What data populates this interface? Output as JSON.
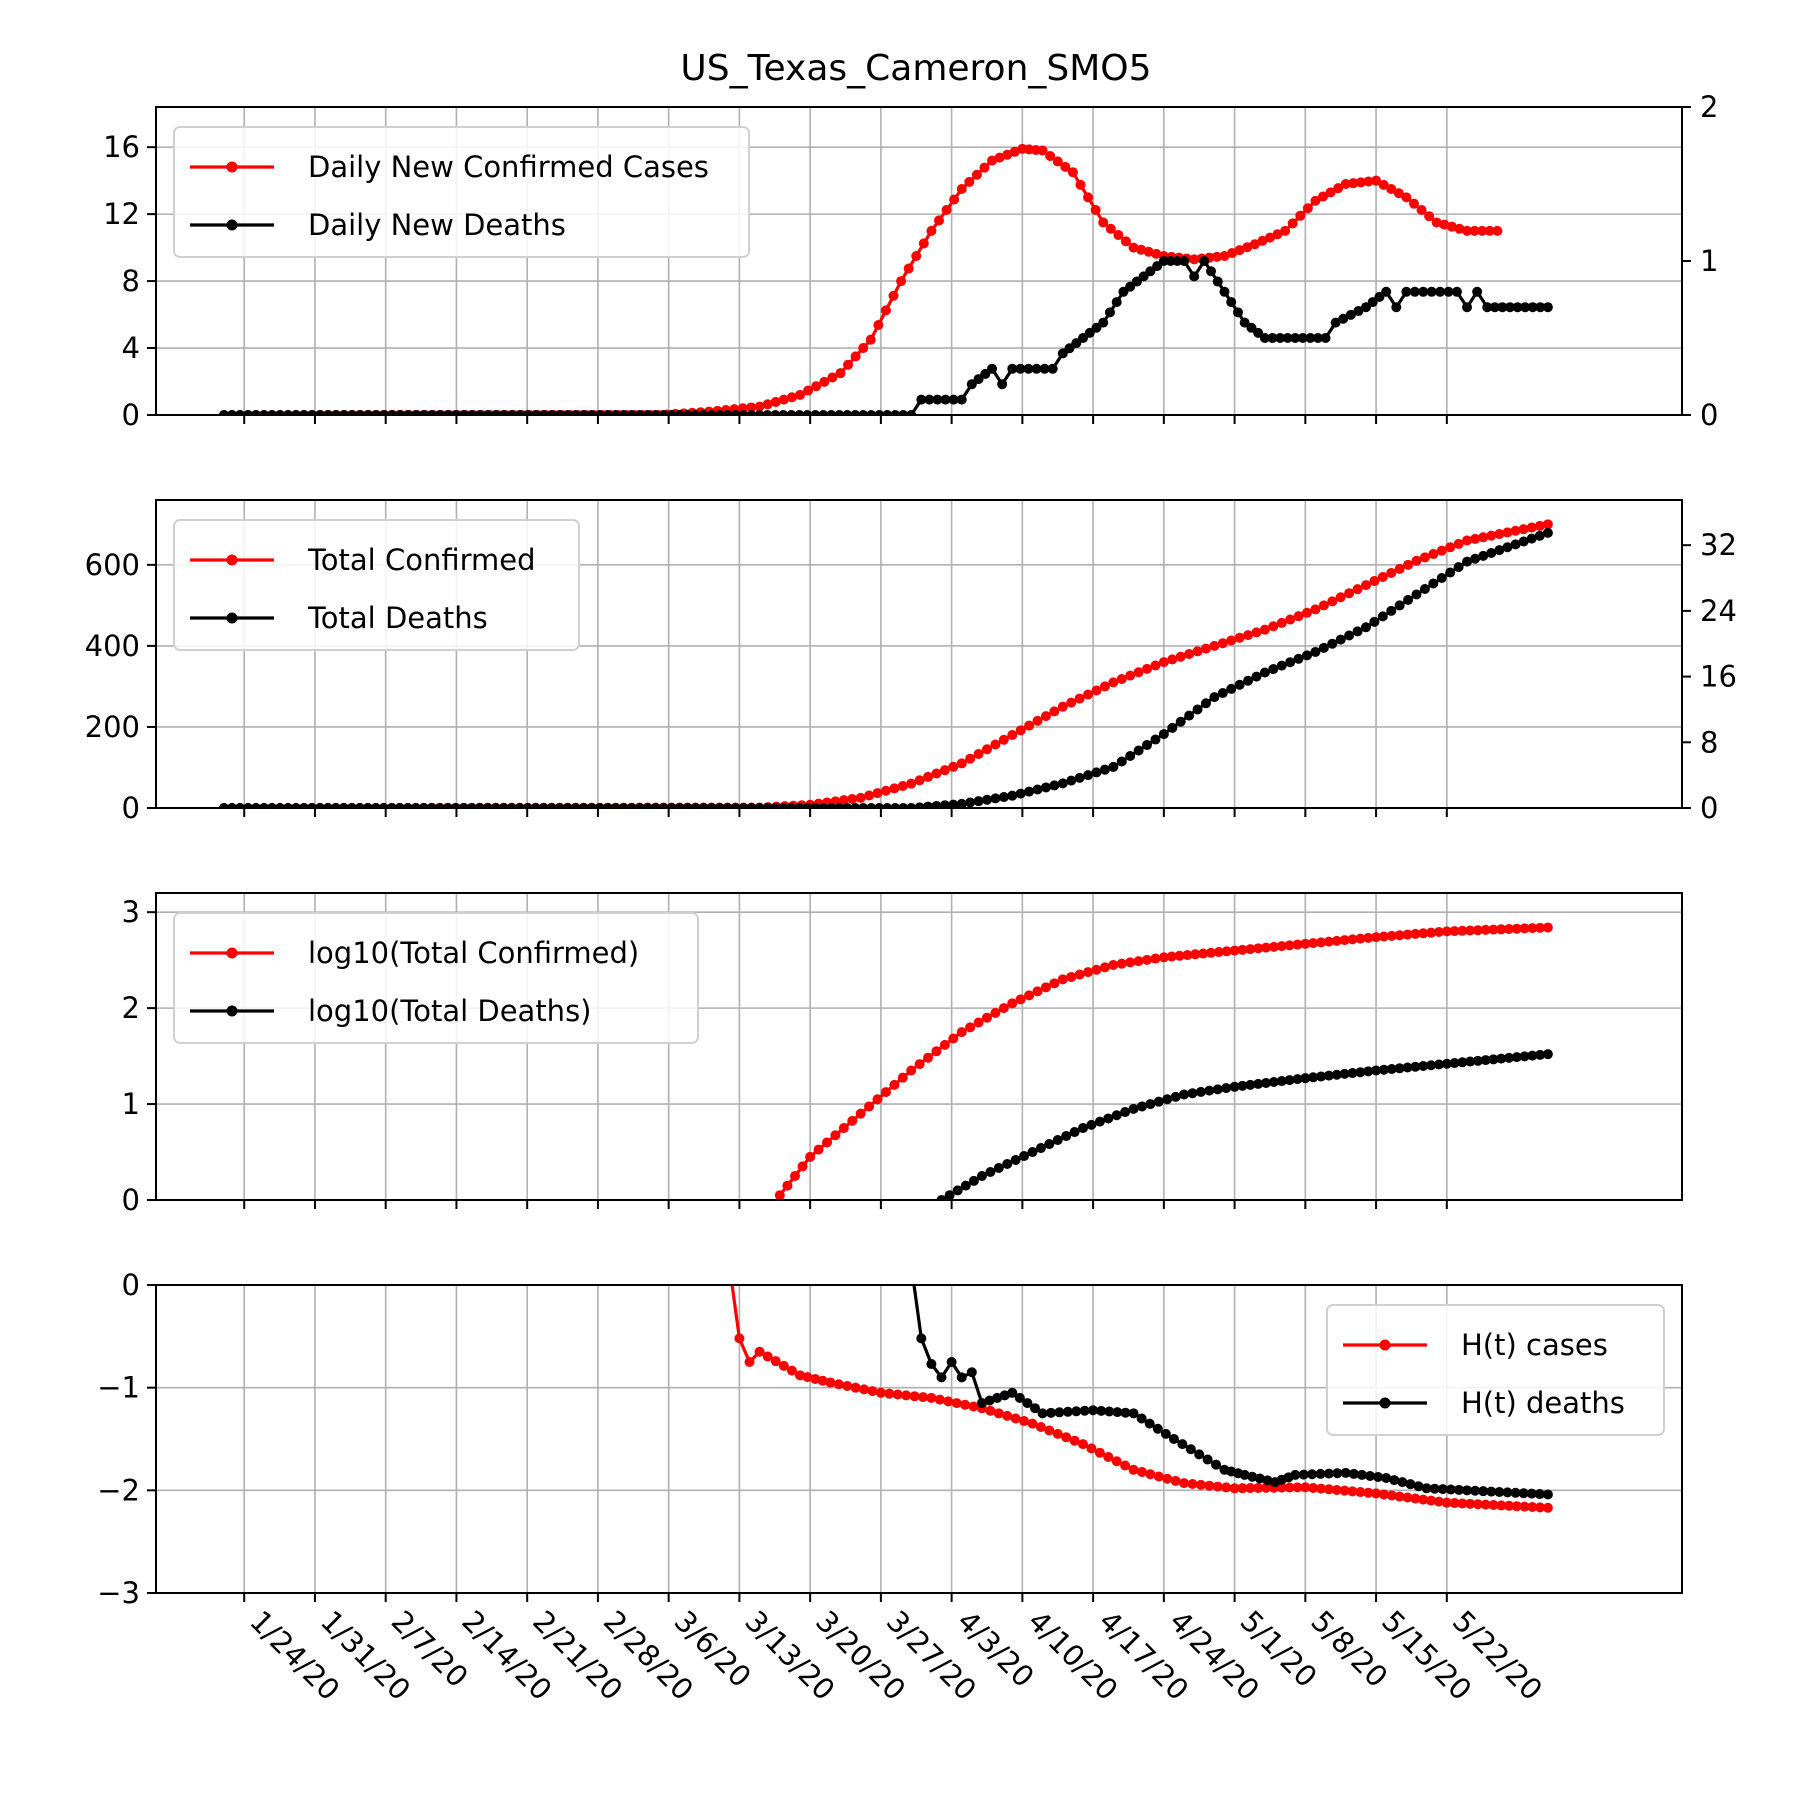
{
  "title": "US_Texas_Cameron_SMO5",
  "colors": {
    "cases": "#ff0000",
    "deaths": "#000000",
    "grid": "#b0b0b0"
  },
  "chart_data": [
    {
      "type": "line",
      "id": "daily",
      "x_start": "2020-01-22",
      "x_end": "2020-05-27",
      "xticks": [
        "1/24/20",
        "1/31/20",
        "2/7/20",
        "2/14/20",
        "2/21/20",
        "2/28/20",
        "3/6/20",
        "3/13/20",
        "3/20/20",
        "3/27/20",
        "4/3/20",
        "4/10/20",
        "4/17/20",
        "4/24/20",
        "5/1/20",
        "5/8/20",
        "5/15/20",
        "5/22/20"
      ],
      "ylim_left": [
        0,
        18.4
      ],
      "ylim_right": [
        0,
        2.0
      ],
      "yticks_left": [
        "0",
        "4",
        "8",
        "12",
        "16"
      ],
      "yticks_right": [
        "0",
        "1",
        "2"
      ],
      "legend": "top-left",
      "grid": true,
      "series": [
        {
          "name": "Daily New Confirmed Cases",
          "axis": "left",
          "color": "#ff0000",
          "points": [
            [
              "2020-01-22",
              0
            ],
            [
              "2020-03-05",
              0
            ],
            [
              "2020-03-10",
              0.2
            ],
            [
              "2020-03-15",
              0.5
            ],
            [
              "2020-03-19",
              1.2
            ],
            [
              "2020-03-23",
              2.5
            ],
            [
              "2020-03-26",
              4.5
            ],
            [
              "2020-03-29",
              8
            ],
            [
              "2020-04-01",
              11
            ],
            [
              "2020-04-04",
              13.5
            ],
            [
              "2020-04-07",
              15.2
            ],
            [
              "2020-04-10",
              15.9
            ],
            [
              "2020-04-12",
              15.8
            ],
            [
              "2020-04-15",
              14.5
            ],
            [
              "2020-04-18",
              11.5
            ],
            [
              "2020-04-21",
              10
            ],
            [
              "2020-04-24",
              9.5
            ],
            [
              "2020-04-27",
              9.3
            ],
            [
              "2020-04-30",
              9.5
            ],
            [
              "2020-05-03",
              10.2
            ],
            [
              "2020-05-06",
              11
            ],
            [
              "2020-05-09",
              12.8
            ],
            [
              "2020-05-12",
              13.8
            ],
            [
              "2020-05-15",
              14
            ],
            [
              "2020-05-18",
              13
            ],
            [
              "2020-05-21",
              11.5
            ],
            [
              "2020-05-24",
              11
            ],
            [
              "2020-05-27",
              11
            ]
          ]
        },
        {
          "name": "Daily New Deaths",
          "axis": "right",
          "color": "#000000",
          "points": [
            [
              "2020-01-22",
              0
            ],
            [
              "2020-03-30",
              0
            ],
            [
              "2020-03-31",
              0.1
            ],
            [
              "2020-04-04",
              0.1
            ],
            [
              "2020-04-05",
              0.2
            ],
            [
              "2020-04-07",
              0.3
            ],
            [
              "2020-04-08",
              0.2
            ],
            [
              "2020-04-09",
              0.3
            ],
            [
              "2020-04-13",
              0.3
            ],
            [
              "2020-04-14",
              0.4
            ],
            [
              "2020-04-16",
              0.5
            ],
            [
              "2020-04-18",
              0.6
            ],
            [
              "2020-04-20",
              0.8
            ],
            [
              "2020-04-22",
              0.9
            ],
            [
              "2020-04-24",
              1.0
            ],
            [
              "2020-04-26",
              1.0
            ],
            [
              "2020-04-27",
              0.9
            ],
            [
              "2020-04-28",
              1.0
            ],
            [
              "2020-04-30",
              0.8
            ],
            [
              "2020-05-02",
              0.6
            ],
            [
              "2020-05-04",
              0.5
            ],
            [
              "2020-05-10",
              0.5
            ],
            [
              "2020-05-11",
              0.6
            ],
            [
              "2020-05-14",
              0.7
            ],
            [
              "2020-05-16",
              0.8
            ],
            [
              "2020-05-17",
              0.7
            ],
            [
              "2020-05-18",
              0.8
            ],
            [
              "2020-05-23",
              0.8
            ],
            [
              "2020-05-24",
              0.7
            ],
            [
              "2020-05-25",
              0.8
            ],
            [
              "2020-05-26",
              0.7
            ],
            [
              "2020-06-01",
              0.7
            ]
          ]
        }
      ]
    },
    {
      "type": "line",
      "id": "totals",
      "ylim_left": [
        0,
        760
      ],
      "ylim_right": [
        0,
        37.5
      ],
      "yticks_left": [
        "0",
        "200",
        "400",
        "600"
      ],
      "yticks_right": [
        "0",
        "8",
        "16",
        "24",
        "32"
      ],
      "legend": "top-left",
      "grid": true,
      "series": [
        {
          "name": "Total Confirmed",
          "axis": "left",
          "color": "#ff0000",
          "points": [
            [
              "2020-01-22",
              0
            ],
            [
              "2020-03-15",
              1
            ],
            [
              "2020-03-20",
              8
            ],
            [
              "2020-03-25",
              25
            ],
            [
              "2020-03-30",
              60
            ],
            [
              "2020-04-04",
              110
            ],
            [
              "2020-04-09",
              180
            ],
            [
              "2020-04-14",
              250
            ],
            [
              "2020-04-19",
              310
            ],
            [
              "2020-04-24",
              360
            ],
            [
              "2020-04-29",
              400
            ],
            [
              "2020-05-04",
              440
            ],
            [
              "2020-05-09",
              490
            ],
            [
              "2020-05-14",
              550
            ],
            [
              "2020-05-19",
              610
            ],
            [
              "2020-05-24",
              660
            ],
            [
              "2020-06-01",
              700
            ]
          ]
        },
        {
          "name": "Total Deaths",
          "axis": "right",
          "color": "#000000",
          "points": [
            [
              "2020-01-22",
              0
            ],
            [
              "2020-03-30",
              0
            ],
            [
              "2020-04-04",
              0.5
            ],
            [
              "2020-04-09",
              1.5
            ],
            [
              "2020-04-14",
              3
            ],
            [
              "2020-04-19",
              5
            ],
            [
              "2020-04-24",
              9
            ],
            [
              "2020-04-29",
              13.5
            ],
            [
              "2020-05-04",
              16.5
            ],
            [
              "2020-05-09",
              19
            ],
            [
              "2020-05-14",
              22
            ],
            [
              "2020-05-19",
              26
            ],
            [
              "2020-05-24",
              30
            ],
            [
              "2020-06-01",
              33.5
            ]
          ]
        }
      ]
    },
    {
      "type": "line",
      "id": "log",
      "ylim_left": [
        0,
        3.2
      ],
      "yticks_left": [
        "0",
        "1",
        "2",
        "3"
      ],
      "legend": "top-left",
      "grid": true,
      "series": [
        {
          "name": "log10(Total Confirmed)",
          "axis": "left",
          "color": "#ff0000",
          "points": [
            [
              "2020-03-17",
              0.05
            ],
            [
              "2020-03-20",
              0.45
            ],
            [
              "2020-03-25",
              0.9
            ],
            [
              "2020-03-30",
              1.35
            ],
            [
              "2020-04-04",
              1.75
            ],
            [
              "2020-04-09",
              2.05
            ],
            [
              "2020-04-14",
              2.3
            ],
            [
              "2020-04-19",
              2.45
            ],
            [
              "2020-04-24",
              2.53
            ],
            [
              "2020-05-01",
              2.6
            ],
            [
              "2020-05-08",
              2.67
            ],
            [
              "2020-05-15",
              2.74
            ],
            [
              "2020-05-22",
              2.8
            ],
            [
              "2020-06-01",
              2.84
            ]
          ]
        },
        {
          "name": "log10(Total Deaths)",
          "axis": "left",
          "color": "#000000",
          "points": [
            [
              "2020-04-02",
              0
            ],
            [
              "2020-04-06",
              0.25
            ],
            [
              "2020-04-11",
              0.5
            ],
            [
              "2020-04-16",
              0.75
            ],
            [
              "2020-04-21",
              0.95
            ],
            [
              "2020-04-26",
              1.1
            ],
            [
              "2020-05-01",
              1.18
            ],
            [
              "2020-05-08",
              1.27
            ],
            [
              "2020-05-15",
              1.35
            ],
            [
              "2020-05-22",
              1.42
            ],
            [
              "2020-06-01",
              1.52
            ]
          ]
        }
      ]
    },
    {
      "type": "line",
      "id": "ht",
      "ylim_left": [
        -3,
        0
      ],
      "yticks_left": [
        "−3",
        "−2",
        "−1",
        "0"
      ],
      "legend": "top-right",
      "grid": true,
      "series": [
        {
          "name": "H(t) cases",
          "axis": "left",
          "color": "#ff0000",
          "points": [
            [
              "2020-03-12",
              0.2
            ],
            [
              "2020-03-13",
              -0.52
            ],
            [
              "2020-03-14",
              -0.75
            ],
            [
              "2020-03-15",
              -0.65
            ],
            [
              "2020-03-19",
              -0.88
            ],
            [
              "2020-03-22",
              -0.95
            ],
            [
              "2020-03-27",
              -1.05
            ],
            [
              "2020-04-01",
              -1.1
            ],
            [
              "2020-04-06",
              -1.2
            ],
            [
              "2020-04-11",
              -1.35
            ],
            [
              "2020-04-16",
              -1.55
            ],
            [
              "2020-04-21",
              -1.8
            ],
            [
              "2020-04-26",
              -1.93
            ],
            [
              "2020-05-01",
              -1.98
            ],
            [
              "2020-05-08",
              -1.97
            ],
            [
              "2020-05-15",
              -2.03
            ],
            [
              "2020-05-22",
              -2.12
            ],
            [
              "2020-06-01",
              -2.17
            ]
          ]
        },
        {
          "name": "H(t) deaths",
          "axis": "left",
          "color": "#000000",
          "points": [
            [
              "2020-03-30",
              0.2
            ],
            [
              "2020-03-31",
              -0.52
            ],
            [
              "2020-04-01",
              -0.77
            ],
            [
              "2020-04-02",
              -0.9
            ],
            [
              "2020-04-03",
              -0.75
            ],
            [
              "2020-04-04",
              -0.9
            ],
            [
              "2020-04-05",
              -0.85
            ],
            [
              "2020-04-06",
              -1.15
            ],
            [
              "2020-04-09",
              -1.05
            ],
            [
              "2020-04-12",
              -1.25
            ],
            [
              "2020-04-17",
              -1.22
            ],
            [
              "2020-04-21",
              -1.25
            ],
            [
              "2020-04-25",
              -1.5
            ],
            [
              "2020-04-30",
              -1.8
            ],
            [
              "2020-05-02",
              -1.85
            ],
            [
              "2020-05-05",
              -1.92
            ],
            [
              "2020-05-07",
              -1.85
            ],
            [
              "2020-05-12",
              -1.83
            ],
            [
              "2020-05-16",
              -1.88
            ],
            [
              "2020-05-20",
              -1.98
            ],
            [
              "2020-06-01",
              -2.04
            ]
          ]
        }
      ]
    }
  ]
}
